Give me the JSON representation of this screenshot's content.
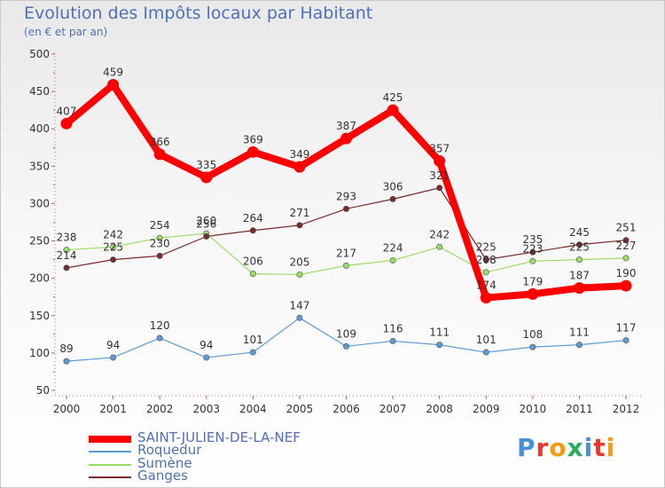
{
  "title": "Evolution des Impôts locaux par Habitant",
  "subtitle": "(en € et par an)",
  "logo_letters": [
    "P",
    "r",
    "o",
    "x",
    "i",
    "t",
    "i"
  ],
  "chart_data": {
    "type": "line",
    "title": "Evolution des Impôts locaux par Habitant",
    "ylabel": "(en € et par an)",
    "xlabel": "",
    "x": [
      "2000",
      "2001",
      "2002",
      "2003",
      "2004",
      "2005",
      "2006",
      "2007",
      "2008",
      "2009",
      "2010",
      "2011",
      "2012"
    ],
    "ylim": [
      50,
      500
    ],
    "yticks": [
      50,
      100,
      150,
      200,
      250,
      300,
      350,
      400,
      450,
      500
    ],
    "legend_position": "bottom-left",
    "series": [
      {
        "name": "SAINT-JULIEN-DE-LA-NEF",
        "color": "#ff0000",
        "values": [
          407,
          459,
          366,
          335,
          369,
          349,
          387,
          425,
          357,
          174,
          179,
          187,
          190
        ]
      },
      {
        "name": "Roquedur",
        "color": "#5b9bd5",
        "values": [
          89,
          94,
          120,
          94,
          101,
          147,
          109,
          116,
          111,
          101,
          108,
          111,
          117
        ]
      },
      {
        "name": "Sumène",
        "color": "#99dd66",
        "values": [
          238,
          242,
          254,
          260,
          206,
          205,
          217,
          224,
          242,
          208,
          223,
          225,
          227
        ]
      },
      {
        "name": "Ganges",
        "color": "#7a2b2b",
        "values": [
          214,
          225,
          230,
          256,
          264,
          271,
          293,
          306,
          321,
          225,
          235,
          245,
          251
        ]
      }
    ]
  }
}
